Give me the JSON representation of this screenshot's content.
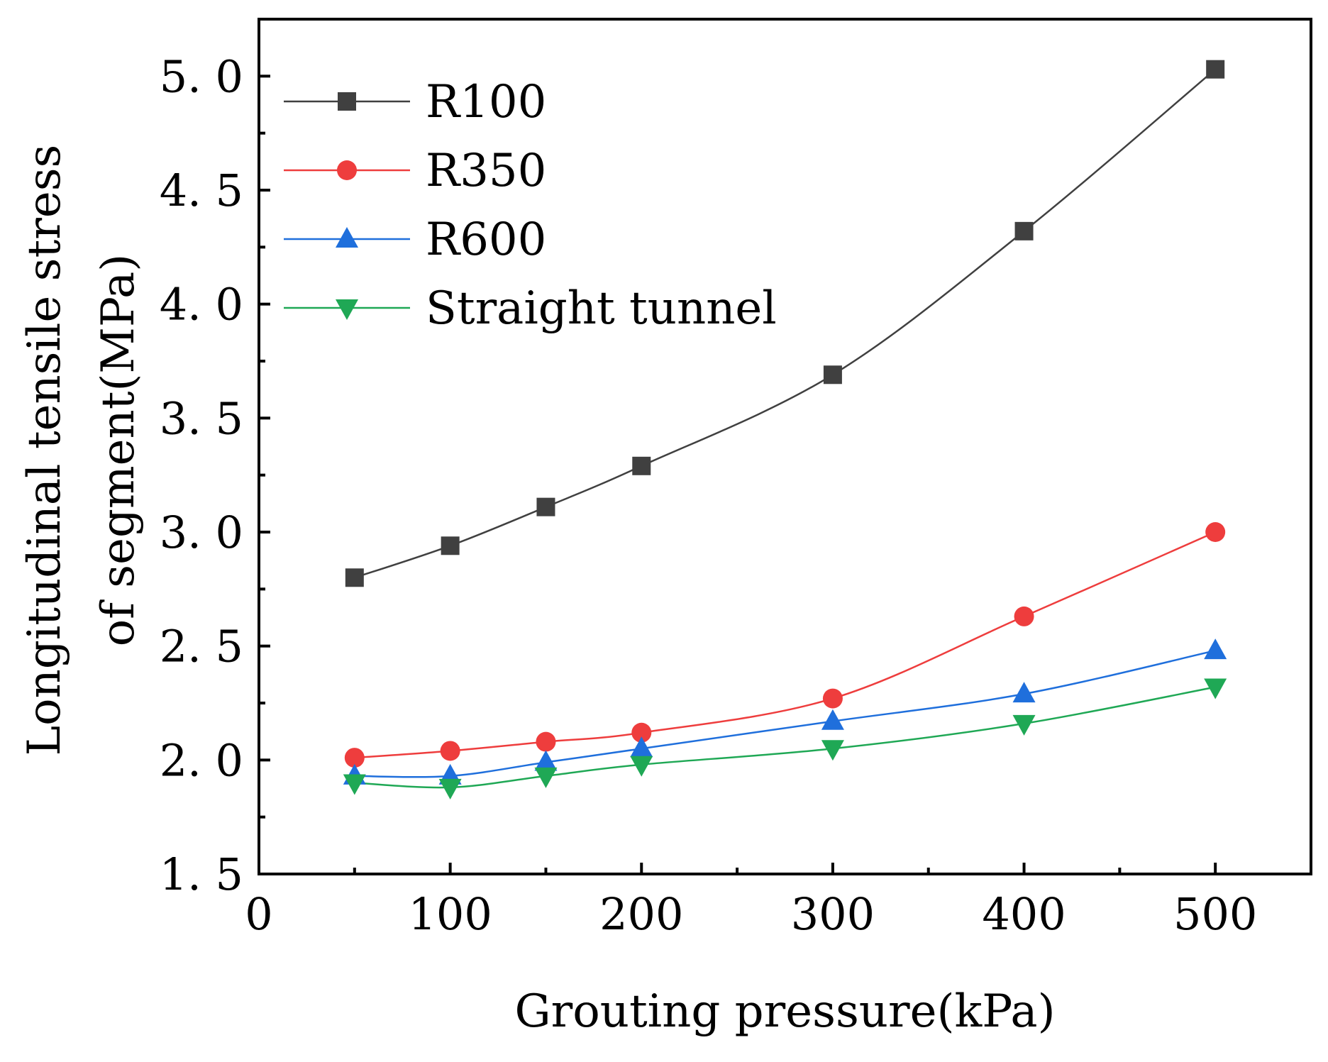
{
  "chart_data": {
    "type": "line",
    "xlabel": "Grouting pressure(kPa)",
    "ylabel_lines": [
      "Longitudinal tensile stress",
      "of segment(MPa)"
    ],
    "xlim": [
      0,
      550
    ],
    "ylim": [
      1.5,
      5.25
    ],
    "x_ticks": [
      0,
      100,
      200,
      300,
      400,
      500
    ],
    "x_tick_labels": [
      "0",
      "100",
      "200",
      "300",
      "400",
      "500"
    ],
    "x_minor_ticks": [
      50,
      150,
      250,
      350,
      450
    ],
    "y_ticks": [
      1.5,
      2.0,
      2.5,
      3.0,
      3.5,
      4.0,
      4.5,
      5.0
    ],
    "y_tick_labels": [
      "1. 5",
      "2. 0",
      "2. 5",
      "3. 0",
      "3. 5",
      "4. 0",
      "4. 5",
      "5. 0"
    ],
    "y_minor_ticks": [
      1.75,
      2.25,
      2.75,
      3.25,
      3.75,
      4.25,
      4.75
    ],
    "legend_position": "top-left",
    "x": [
      50,
      100,
      150,
      200,
      300,
      400,
      500
    ],
    "series": [
      {
        "name": "R100",
        "marker": "square",
        "color": "#404040",
        "values": [
          2.8,
          2.94,
          3.11,
          3.29,
          3.69,
          4.32,
          5.03
        ]
      },
      {
        "name": "R350",
        "marker": "circle",
        "color": "#ee3d3d",
        "values": [
          2.01,
          2.04,
          2.08,
          2.12,
          2.27,
          2.63,
          3.0
        ]
      },
      {
        "name": "R600",
        "marker": "triangle-up",
        "color": "#1f6fdc",
        "values": [
          1.93,
          1.93,
          1.99,
          2.05,
          2.17,
          2.29,
          2.48
        ]
      },
      {
        "name": "Straight tunnel",
        "marker": "triangle-down",
        "color": "#1fa855",
        "values": [
          1.9,
          1.88,
          1.93,
          1.98,
          2.05,
          2.16,
          2.32
        ]
      }
    ]
  }
}
